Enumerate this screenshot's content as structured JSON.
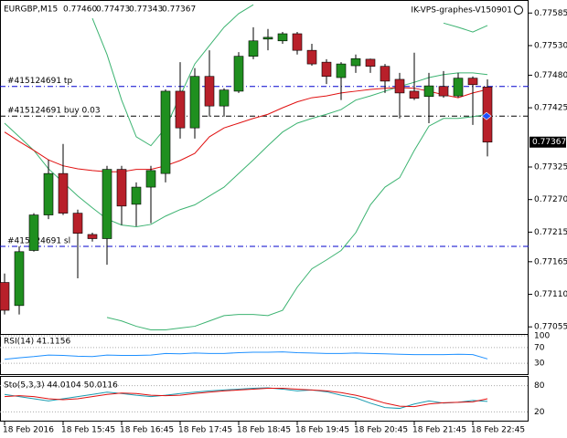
{
  "chart_data": {
    "type": "candlestick",
    "symbol": "EURGBP,M15",
    "quote": [
      "0.77460",
      "0.77473",
      "0.77343",
      "0.77367"
    ],
    "watermark": "IK-VPS-graphes-V150901",
    "categories": [
      "18 Feb 2016",
      null,
      null,
      null,
      "18 Feb 15:45",
      null,
      null,
      null,
      "18 Feb 16:45",
      null,
      null,
      null,
      "18 Feb 17:45",
      null,
      null,
      null,
      "18 Feb 18:45",
      null,
      null,
      null,
      "18 Feb 19:45",
      null,
      null,
      null,
      "18 Feb 20:45",
      null,
      null,
      null,
      "18 Feb 21:45",
      null,
      null,
      null,
      "18 Feb 22:45",
      null
    ],
    "open": [
      0.7713,
      0.77091,
      0.77184,
      0.77244,
      0.77314,
      0.77247,
      0.77211,
      0.77204,
      0.77321,
      0.77262,
      0.77291,
      0.77314,
      0.77453,
      0.77391,
      0.77478,
      0.77428,
      0.77453,
      0.77512,
      0.77541,
      0.77538,
      0.7755,
      0.77522,
      0.77502,
      0.77476,
      0.77496,
      0.77507,
      0.77495,
      0.77473,
      0.77453,
      0.77444,
      0.77461,
      0.77445,
      0.77475,
      0.7746
    ],
    "high": [
      0.77145,
      0.77191,
      0.77247,
      0.77337,
      0.77364,
      0.77253,
      0.77214,
      0.77327,
      0.77327,
      0.77299,
      0.77327,
      0.77456,
      0.77502,
      0.77492,
      0.77522,
      0.77458,
      0.77519,
      0.77561,
      0.77558,
      0.77553,
      0.77553,
      0.77533,
      0.77507,
      0.77502,
      0.77515,
      0.77508,
      0.77499,
      0.77484,
      0.77518,
      0.77484,
      0.77487,
      0.77484,
      0.77478,
      0.77473
    ],
    "low": [
      0.77076,
      0.77076,
      0.77182,
      0.77237,
      0.77244,
      0.77137,
      0.77199,
      0.7716,
      0.77227,
      0.77225,
      0.7723,
      0.77299,
      0.77373,
      0.77373,
      0.7741,
      0.7741,
      0.7745,
      0.77507,
      0.77522,
      0.77533,
      0.77515,
      0.77496,
      0.77465,
      0.77438,
      0.77484,
      0.77484,
      0.7745,
      0.77407,
      0.77438,
      0.77399,
      0.77442,
      0.77442,
      0.77396,
      0.77343
    ],
    "close": [
      0.77083,
      0.77182,
      0.77244,
      0.77314,
      0.77247,
      0.77213,
      0.77204,
      0.77321,
      0.77259,
      0.77291,
      0.77319,
      0.77453,
      0.77391,
      0.77478,
      0.77428,
      0.77455,
      0.77512,
      0.77538,
      0.77544,
      0.7755,
      0.77522,
      0.77499,
      0.77478,
      0.77499,
      0.77508,
      0.77495,
      0.7747,
      0.7745,
      0.77441,
      0.77462,
      0.77445,
      0.77475,
      0.77464,
      0.77367
    ],
    "up_color": "#1f8f1f",
    "down_color": "#b8202a",
    "series": [
      {
        "color": "#3cb371",
        "values": [
          null,
          null,
          null,
          null,
          null,
          null,
          0.77576,
          0.77515,
          0.77438,
          0.77376,
          0.77361,
          0.77391,
          0.77445,
          0.77499,
          0.7753,
          0.77561,
          0.77584,
          0.77599,
          null,
          null,
          null,
          null,
          null,
          null,
          null,
          null,
          null,
          null,
          null,
          null,
          0.77568,
          0.77561,
          0.77553,
          0.77564
        ]
      },
      {
        "color": "#3cb371",
        "values": [
          0.77399,
          0.77376,
          0.77353,
          0.77322,
          0.77299,
          0.77276,
          0.77256,
          0.77237,
          0.77227,
          0.77224,
          0.77228,
          0.77242,
          0.77253,
          0.77261,
          0.77276,
          0.77291,
          0.77314,
          0.77337,
          0.77361,
          0.77384,
          0.77399,
          0.77407,
          0.77414,
          0.77422,
          0.77438,
          0.77445,
          0.77453,
          0.77461,
          0.77468,
          0.77476,
          0.77481,
          0.77484,
          0.77484,
          0.77481
        ]
      },
      {
        "color": "#3cb371",
        "values": [
          null,
          null,
          null,
          null,
          null,
          null,
          null,
          0.77071,
          0.77065,
          0.77056,
          0.7705,
          0.7705,
          0.77053,
          0.77056,
          0.77065,
          0.77074,
          0.77076,
          0.77076,
          0.77074,
          0.77083,
          0.77122,
          0.77153,
          0.77168,
          0.77184,
          0.77214,
          0.77261,
          0.77291,
          0.77307,
          0.77353,
          0.77394,
          0.77407,
          0.77407,
          0.7741,
          0.77414
        ]
      },
      {
        "color": "#e01010",
        "values": [
          0.77384,
          0.77368,
          0.77353,
          0.77337,
          0.77327,
          0.77322,
          0.77319,
          0.77317,
          0.77317,
          0.77321,
          0.77321,
          0.77327,
          0.77336,
          0.77348,
          0.77376,
          0.77391,
          0.77399,
          0.77407,
          0.77414,
          0.77425,
          0.77435,
          0.77442,
          0.77445,
          0.7745,
          0.77453,
          0.77456,
          0.77458,
          0.77459,
          0.77458,
          0.77453,
          0.77447,
          0.77442,
          0.7745,
          0.77456
        ]
      }
    ],
    "orders": [
      {
        "label": "#415124691 tp",
        "value": 0.77461,
        "color": "#0000cd"
      },
      {
        "label": "#415124691 buy 0.03",
        "value": 0.77411,
        "color": "#000000"
      },
      {
        "label": "#415124691 sl",
        "value": 0.77191,
        "color": "#0000cd"
      }
    ],
    "last_price": 0.77367,
    "ylim": [
      0.77043,
      0.77607
    ],
    "yticks": [
      0.77585,
      {
        "value": 0.7753,
        "label": "0.77530"
      },
      {
        "value": 0.7748,
        "label": "0.77480"
      },
      0.77425,
      0.77325,
      {
        "value": 0.7727,
        "label": "0.77270"
      },
      0.77215,
      0.77165,
      {
        "value": 0.7711,
        "label": "0.77110"
      },
      0.77055
    ],
    "rsi": {
      "label": "RSI(14) 41.1156",
      "color": "#1e90ff",
      "ylim": [
        0,
        100
      ],
      "yticks": [
        100,
        70,
        30
      ],
      "values": [
        40,
        44,
        47,
        51,
        50,
        48,
        47,
        51,
        50,
        50,
        51,
        55,
        54,
        56,
        55,
        55,
        57,
        58,
        58,
        59,
        57,
        56,
        55,
        55,
        56,
        55,
        54,
        53,
        52,
        52,
        52,
        53,
        52,
        41.1156
      ]
    },
    "stochastic": {
      "label": "Sto(5,3,3) 44.0104 50.0116",
      "ylim": [
        0,
        100
      ],
      "yticks": [
        80,
        20
      ],
      "series": [
        {
          "color": "#1a9bb0",
          "values": [
            60,
            55,
            50,
            45,
            50,
            55,
            60,
            65,
            62,
            58,
            55,
            58,
            62,
            65,
            68,
            70,
            72,
            74,
            75,
            72,
            68,
            70,
            66,
            58,
            52,
            40,
            30,
            28,
            38,
            45,
            40,
            42,
            46,
            44.0104
          ]
        },
        {
          "color": "#e01010",
          "values": [
            55,
            57,
            55,
            50,
            48,
            50,
            55,
            60,
            63,
            62,
            58,
            57,
            58,
            62,
            65,
            68,
            70,
            72,
            74,
            74,
            72,
            70,
            68,
            64,
            58,
            50,
            40,
            33,
            32,
            38,
            41,
            42,
            43,
            50.0116
          ]
        }
      ]
    }
  }
}
